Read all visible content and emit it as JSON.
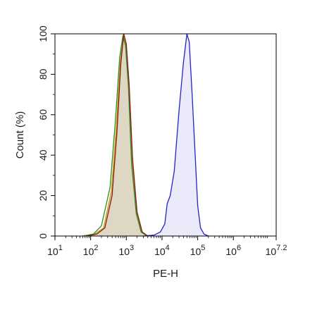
{
  "chart_data": {
    "type": "area",
    "title": "",
    "xlabel": "PE-H",
    "ylabel": "Count (%)",
    "x_scale": "log10",
    "xlim": [
      10,
      15848932
    ],
    "ylim": [
      0,
      100
    ],
    "x_ticks": [
      {
        "base": "10",
        "exp": "1",
        "value": 10
      },
      {
        "base": "10",
        "exp": "2",
        "value": 100
      },
      {
        "base": "10",
        "exp": "3",
        "value": 1000
      },
      {
        "base": "10",
        "exp": "4",
        "value": 10000
      },
      {
        "base": "10",
        "exp": "5",
        "value": 100000
      },
      {
        "base": "10",
        "exp": "6",
        "value": 1000000
      },
      {
        "base": "10",
        "exp": "7.2",
        "value": 15848932
      }
    ],
    "y_ticks": [
      "0",
      "20",
      "40",
      "60",
      "80",
      "100"
    ],
    "grid": false,
    "legend": "none",
    "series": [
      {
        "color": "#8a1c1c",
        "fill": "none",
        "x": [
          80,
          150,
          250,
          400,
          550,
          700,
          850,
          1000,
          1200,
          1500,
          2000,
          2800,
          4000
        ],
        "y": [
          0,
          1,
          4,
          20,
          52,
          85,
          100,
          95,
          75,
          38,
          12,
          2,
          0
        ]
      },
      {
        "color": "#2e8b2e",
        "fill": "none",
        "x": [
          60,
          120,
          200,
          350,
          500,
          650,
          800,
          950,
          1150,
          1400,
          1900,
          2600,
          3800
        ],
        "y": [
          0,
          1,
          5,
          24,
          58,
          88,
          99,
          94,
          73,
          36,
          11,
          2,
          0
        ]
      },
      {
        "color": "#c8a000",
        "fill": "#d8d0ba",
        "x": [
          70,
          130,
          230,
          380,
          530,
          680,
          830,
          980,
          1180,
          1450,
          1950,
          2700,
          3900
        ],
        "y": [
          0,
          1,
          4,
          22,
          55,
          86,
          100,
          94,
          74,
          37,
          11,
          2,
          0
        ]
      },
      {
        "color": "#2424c8",
        "fill": "#e6e6fa",
        "x": [
          3000,
          6000,
          9000,
          12000,
          14000,
          17000,
          22000,
          30000,
          40000,
          50000,
          58000,
          70000,
          85000,
          100000,
          120000,
          150000,
          200000
        ],
        "y": [
          0,
          0.5,
          2,
          6,
          16,
          20,
          32,
          62,
          86,
          100,
          96,
          70,
          40,
          15,
          4,
          1,
          0
        ]
      }
    ]
  }
}
